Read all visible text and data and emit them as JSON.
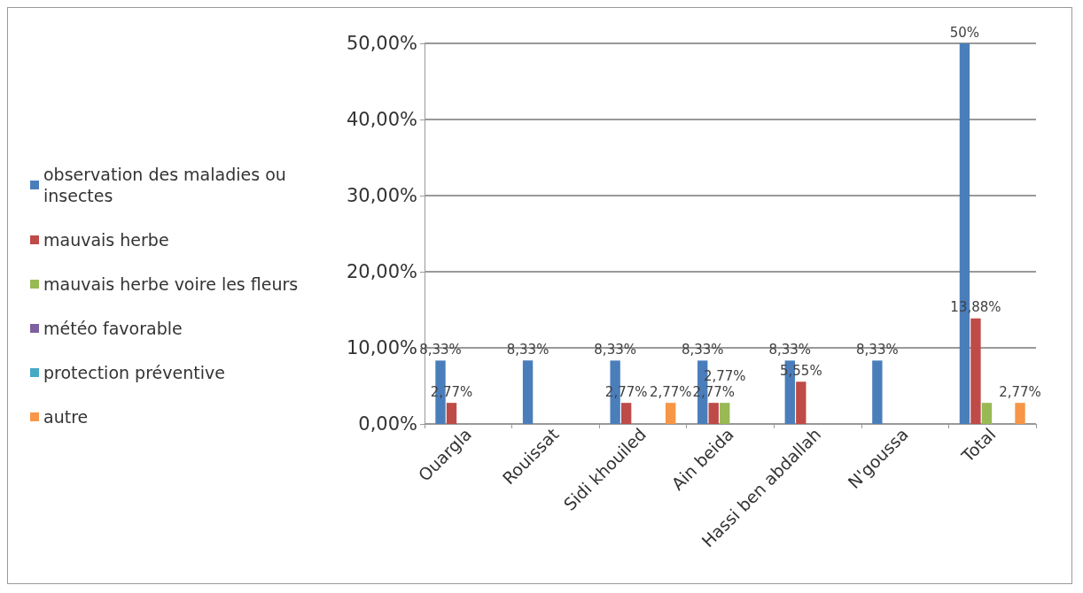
{
  "chart_data": {
    "type": "bar",
    "categories": [
      "Ouargla",
      "Rouissat",
      "Sidi khouiled",
      "Ain beida",
      "Hassi ben abdallah",
      "N'goussa",
      "Total"
    ],
    "series": [
      {
        "name": "observation des maladies ou insectes",
        "color": "#4a7ebb",
        "values": [
          8.33,
          8.33,
          8.33,
          8.33,
          8.33,
          8.33,
          50
        ],
        "value_labels": [
          "8,33%",
          "8,33%",
          "8,33%",
          "8,33%",
          "8,33%",
          "8,33%",
          "50%"
        ]
      },
      {
        "name": "mauvais herbe",
        "color": "#be4b48",
        "values": [
          2.77,
          0,
          2.77,
          2.77,
          5.55,
          0,
          13.88
        ],
        "value_labels": [
          "2,77%",
          null,
          "2,77%",
          "2,77%",
          "5,55%",
          null,
          "13,88%"
        ]
      },
      {
        "name": "mauvais herbe voire les fleurs",
        "color": "#98b954",
        "values": [
          0,
          0,
          0,
          2.77,
          0,
          0,
          2.77
        ],
        "value_labels": [
          null,
          null,
          null,
          "2,77%",
          null,
          null,
          null
        ]
      },
      {
        "name": "météo favorable",
        "color": "#7d60a0",
        "values": [
          0,
          0,
          0,
          0,
          0,
          0,
          0
        ],
        "value_labels": [
          null,
          null,
          null,
          null,
          null,
          null,
          null
        ]
      },
      {
        "name": "protection préventive",
        "color": "#46aac5",
        "values": [
          0,
          0,
          0,
          0,
          0,
          0,
          0
        ],
        "value_labels": [
          null,
          null,
          null,
          null,
          null,
          null,
          null
        ]
      },
      {
        "name": "autre",
        "color": "#f79646",
        "values": [
          0,
          0,
          2.77,
          0,
          0,
          0,
          2.77
        ],
        "value_labels": [
          null,
          null,
          "2,77%",
          null,
          null,
          null,
          "2,77%"
        ]
      }
    ],
    "ylim": [
      0,
      50
    ],
    "yticks": [
      {
        "value": 0,
        "label": "0,00%"
      },
      {
        "value": 10,
        "label": "10,00%"
      },
      {
        "value": 20,
        "label": "20,00%"
      },
      {
        "value": 30,
        "label": "30,00%"
      },
      {
        "value": 40,
        "label": "40,00%"
      },
      {
        "value": 50,
        "label": "50,00%"
      }
    ],
    "grid": "y",
    "legend": "left"
  }
}
